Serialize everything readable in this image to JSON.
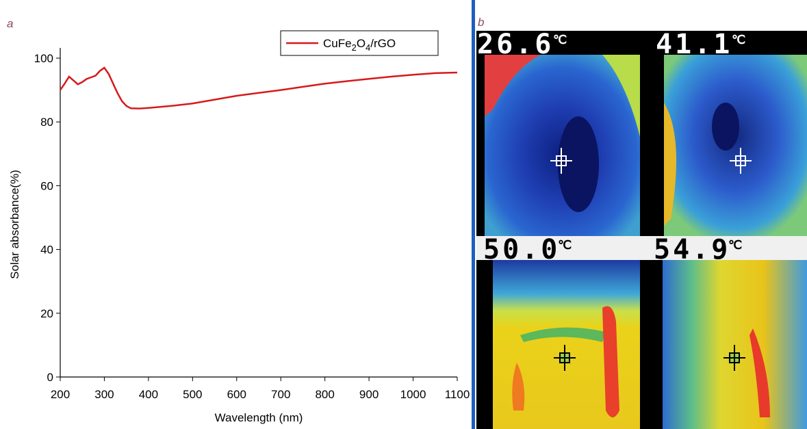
{
  "chart_data": {
    "type": "line",
    "panel_label": "a",
    "x_label": "Wavelength (nm)",
    "y_label": "Solar absorbance(%)",
    "x": [
      200,
      210,
      220,
      230,
      240,
      250,
      260,
      270,
      280,
      290,
      300,
      310,
      320,
      330,
      340,
      350,
      360,
      380,
      400,
      450,
      500,
      550,
      600,
      650,
      700,
      750,
      800,
      850,
      900,
      950,
      1000,
      1050,
      1100
    ],
    "series": [
      {
        "name": "CuFe2O4/rGO",
        "color": "#d7191c",
        "values": [
          90,
          92,
          94.2,
          93,
          91.8,
          92.5,
          93.5,
          94,
          94.5,
          96,
          97,
          95,
          92,
          89,
          86.5,
          85,
          84.3,
          84.2,
          84.4,
          85,
          85.8,
          87,
          88.2,
          89.1,
          90,
          91,
          92,
          92.8,
          93.5,
          94.2,
          94.8,
          95.3,
          95.5
        ]
      }
    ],
    "xlim": [
      200,
      1100
    ],
    "xticks": [
      200,
      300,
      400,
      500,
      600,
      700,
      800,
      900,
      1000,
      1100
    ],
    "ylim": [
      0,
      100
    ],
    "yticks": [
      0,
      20,
      40,
      60,
      80,
      100
    ],
    "legend": "top-right"
  },
  "panel_b": {
    "panel_label": "b",
    "images": [
      {
        "temperature": "26.6",
        "unit": "℃"
      },
      {
        "temperature": "41.1",
        "unit": "℃"
      },
      {
        "temperature": "50.0",
        "unit": "℃"
      },
      {
        "temperature": "54.9",
        "unit": "℃"
      }
    ]
  }
}
